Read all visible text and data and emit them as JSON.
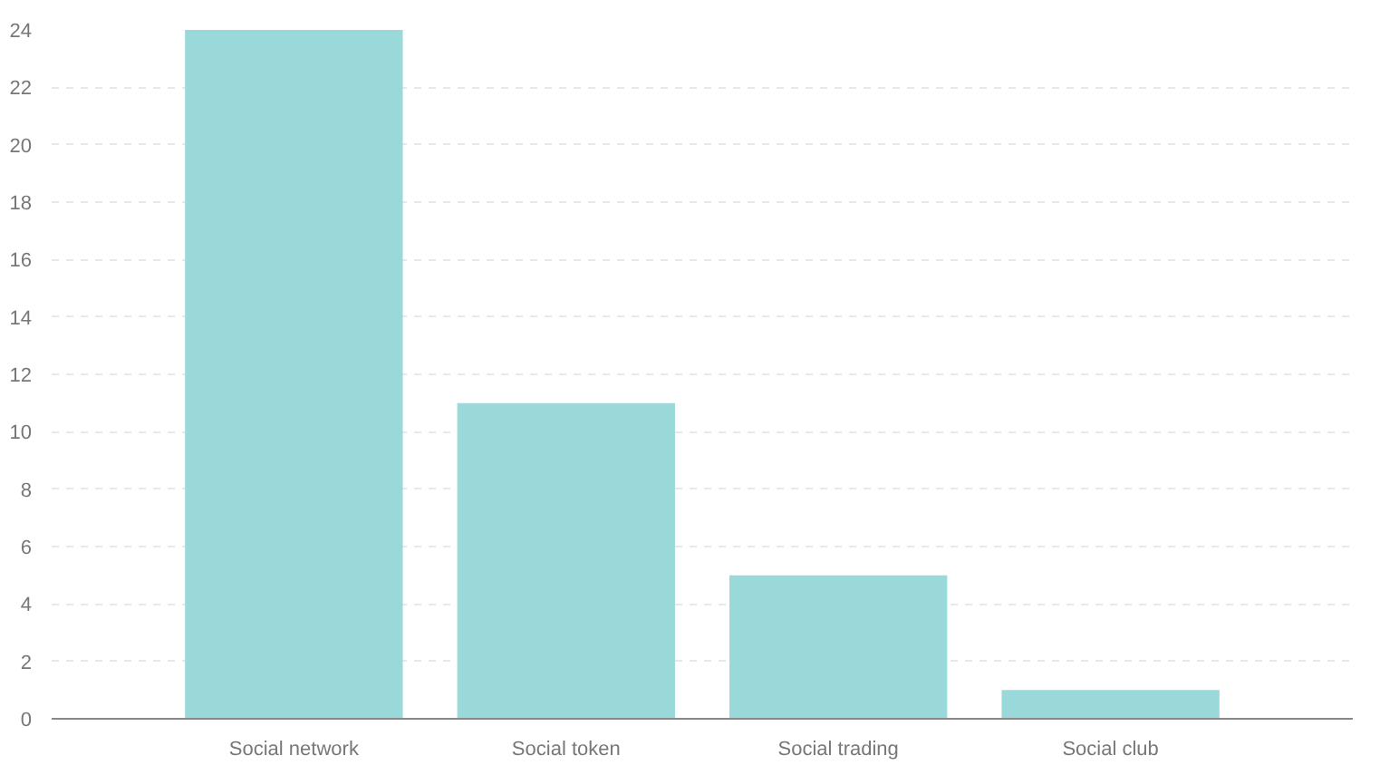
{
  "chart_data": {
    "type": "bar",
    "categories": [
      "Social network",
      "Social token",
      "Social trading",
      "Social club"
    ],
    "values": [
      24,
      11,
      5,
      1
    ],
    "color": "#99d9d9",
    "ylim": [
      0,
      24
    ],
    "yticks": [
      0,
      2,
      4,
      6,
      8,
      10,
      12,
      14,
      16,
      18,
      20,
      22,
      24
    ],
    "grid": "y"
  }
}
